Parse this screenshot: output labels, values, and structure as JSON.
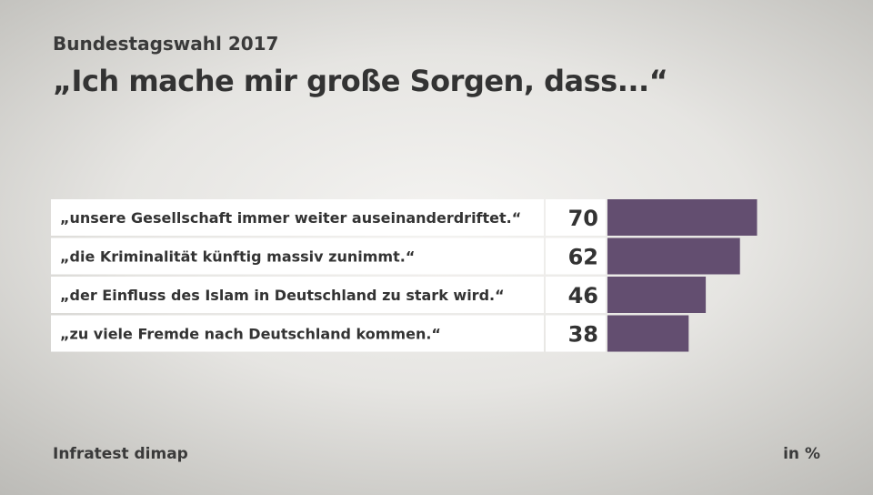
{
  "header": {
    "supertitle": "Bundestagswahl 2017",
    "title": "„Ich mache mir große Sorgen, dass...“"
  },
  "footer": {
    "source": "Infratest dimap",
    "unit": "in %"
  },
  "chart_data": {
    "type": "bar",
    "orientation": "horizontal",
    "categories": [
      "„unsere Gesellschaft immer weiter auseinanderdriftet.“",
      "„die Kriminalität künftig massiv zunimmt.“",
      "„der Einfluss des Islam in Deutschland zu stark wird.“",
      "„zu viele Fremde nach Deutschland kommen.“"
    ],
    "values": [
      70,
      62,
      46,
      38
    ],
    "xlim": [
      0,
      100
    ],
    "grid": false,
    "legend": "none",
    "colors": {
      "bar": "#634e70",
      "label_box": "#ffffff"
    }
  }
}
